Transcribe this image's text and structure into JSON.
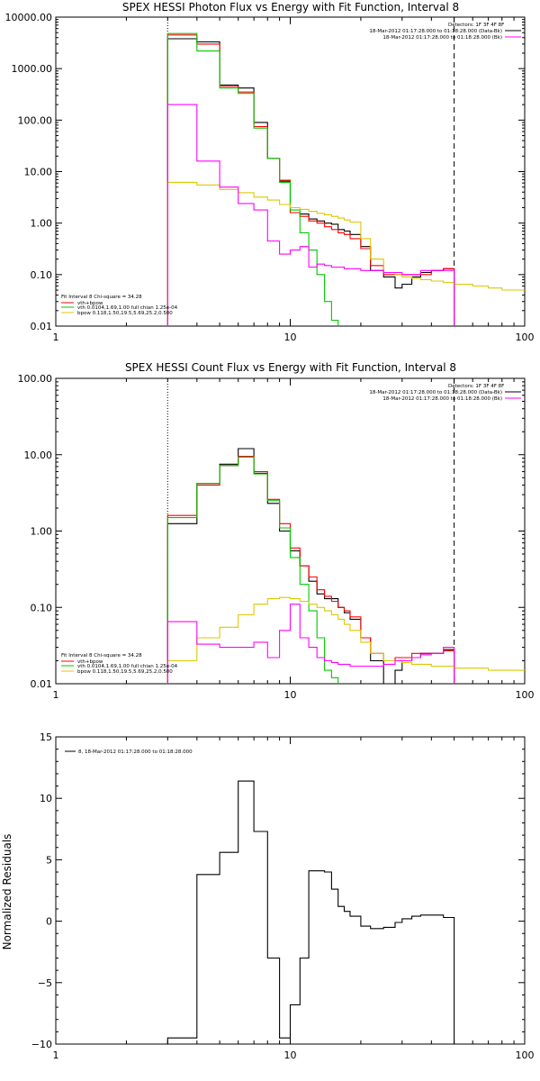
{
  "chart_data": [
    {
      "type": "line",
      "title": "SPEX HESSI Photon Flux vs Energy with Fit Function, Interval 8",
      "xlabel": "",
      "ylabel": "",
      "xscale": "log",
      "yscale": "log",
      "xlim": [
        1,
        100
      ],
      "ylim": [
        0.01,
        10000
      ],
      "xticks": [
        1,
        10,
        100
      ],
      "xtick_labels": [
        "1",
        "10",
        "100"
      ],
      "yticks": [
        0.01,
        0.1,
        1,
        10,
        100,
        1000,
        10000
      ],
      "ytick_labels": [
        "0.01",
        "0.10",
        "1.00",
        "10.00",
        "100.00",
        "1000.00",
        "10000.00"
      ],
      "vlines": [
        {
          "x": 3,
          "style": "dotted"
        },
        {
          "x": 50,
          "style": "dashed"
        }
      ],
      "legend_top": [
        "Detectors: 1F 3F 4F 8F",
        "18-Mar-2012 01:17:28.000 to 01:18:28.000 (Data-Bk)",
        "18-Mar-2012 01:17:28.000 to 01:18:28.000 (Bk)"
      ],
      "legend_bottom_title": "Fit Interval 8   Chi-square = 34.28",
      "legend_bottom": [
        "vth+bpow",
        "vth 0.0104,1.69,1.00  full chian 1.25e-04",
        "bpow 0.118,1.50,19.5,5.69,25.2,0.500"
      ],
      "series": [
        {
          "name": "Data-Bk",
          "color": "#000000",
          "edges": [
            3,
            4,
            5,
            6,
            7,
            8,
            9,
            10,
            11,
            12,
            13,
            14,
            15,
            16,
            17,
            18,
            20,
            22,
            25,
            28,
            30,
            33,
            36,
            40,
            45,
            50
          ],
          "values": [
            3800,
            3300,
            480,
            420,
            90,
            18,
            6.5,
            1.6,
            1.5,
            1.2,
            1.1,
            1.0,
            0.95,
            0.75,
            0.7,
            0.6,
            0.35,
            0.12,
            0.09,
            0.055,
            0.065,
            0.09,
            0.11,
            0.12,
            0.13
          ]
        },
        {
          "name": "vth+bpow",
          "color": "#ff0000",
          "edges": [
            3,
            4,
            5,
            6,
            7,
            8,
            9,
            10,
            11,
            12,
            13,
            14,
            15,
            16,
            17,
            18,
            20,
            22,
            25,
            28,
            30,
            33,
            36,
            40,
            45,
            50
          ],
          "values": [
            4500,
            3000,
            450,
            350,
            75,
            18,
            6.8,
            1.6,
            1.35,
            1.1,
            1.0,
            0.85,
            0.75,
            0.65,
            0.6,
            0.5,
            0.32,
            0.15,
            0.1,
            0.1,
            0.1,
            0.1,
            0.1,
            0.12,
            0.13
          ]
        },
        {
          "name": "vth",
          "color": "#00c800",
          "edges": [
            3,
            4,
            5,
            6,
            7,
            8,
            9,
            10,
            11,
            12,
            13,
            14,
            15,
            16
          ],
          "values": [
            4800,
            2200,
            420,
            330,
            70,
            18,
            6.2,
            1.8,
            0.65,
            0.3,
            0.1,
            0.03,
            0.013
          ]
        },
        {
          "name": "bpow",
          "color": "#dcc800",
          "edges": [
            3,
            4,
            5,
            6,
            7,
            8,
            9,
            10,
            11,
            12,
            13,
            14,
            15,
            16,
            17,
            18,
            20,
            22,
            25,
            28,
            30,
            33,
            36,
            40,
            45,
            50,
            60,
            70,
            80,
            100
          ],
          "values": [
            6.2,
            5.5,
            4.5,
            3.9,
            3.2,
            2.8,
            2.3,
            2.0,
            1.85,
            1.7,
            1.55,
            1.45,
            1.35,
            1.25,
            1.15,
            1.05,
            0.5,
            0.2,
            0.11,
            0.1,
            0.09,
            0.085,
            0.08,
            0.075,
            0.07,
            0.065,
            0.06,
            0.055,
            0.05
          ]
        },
        {
          "name": "Bk",
          "color": "#ff00ff",
          "edges": [
            3,
            4,
            5,
            6,
            7,
            8,
            9,
            10,
            11,
            12,
            13,
            14,
            15,
            16,
            17,
            18,
            20,
            22,
            25,
            28,
            30,
            33,
            36,
            40,
            45,
            50
          ],
          "values": [
            200,
            16,
            5,
            2.4,
            1.8,
            0.45,
            0.25,
            0.3,
            0.35,
            0.14,
            0.16,
            0.15,
            0.14,
            0.14,
            0.13,
            0.13,
            0.12,
            0.12,
            0.11,
            0.11,
            0.1,
            0.1,
            0.12,
            0.12,
            0.12
          ]
        }
      ]
    },
    {
      "type": "line",
      "title": "SPEX HESSI Count Flux vs Energy with Fit Function, Interval 8",
      "xlabel": "",
      "ylabel": "",
      "xscale": "log",
      "yscale": "log",
      "xlim": [
        1,
        100
      ],
      "ylim": [
        0.01,
        100
      ],
      "xticks": [
        1,
        10,
        100
      ],
      "xtick_labels": [
        "1",
        "10",
        "100"
      ],
      "yticks": [
        0.01,
        0.1,
        1,
        10,
        100
      ],
      "ytick_labels": [
        "0.01",
        "0.10",
        "1.00",
        "10.00",
        "100.00"
      ],
      "vlines": [
        {
          "x": 3,
          "style": "dotted"
        },
        {
          "x": 50,
          "style": "dashed"
        }
      ],
      "legend_top": [
        "Detectors: 1F 3F 4F 8F",
        "18-Mar-2012 01:17:28.000 to 01:18:28.000 (Data-Bk)",
        "18-Mar-2012 01:17:28.000 to 01:18:28.000 (Bk)"
      ],
      "legend_bottom_title": "Fit Interval 8   Chi-square = 34.28",
      "legend_bottom": [
        "vth+bpow",
        "vth 0.0104,1.69,1.00  full chian 1.25e-04",
        "bpow 0.118,1.50,19.5,5.69,25.2,0.500"
      ],
      "series": [
        {
          "name": "Data-Bk",
          "color": "#000000",
          "edges": [
            3,
            4,
            5,
            6,
            7,
            8,
            9,
            10,
            11,
            12,
            13,
            14,
            15,
            16,
            17,
            18,
            20,
            22,
            25,
            28,
            30,
            33,
            36,
            40,
            45,
            50
          ],
          "values": [
            1.25,
            4.2,
            7.5,
            12.0,
            5.7,
            2.3,
            1.0,
            0.55,
            0.35,
            0.22,
            0.15,
            0.13,
            0.13,
            0.1,
            0.085,
            0.07,
            0.04,
            0.02,
            0.01,
            0.015,
            0.02,
            0.022,
            0.025,
            0.025,
            0.028
          ]
        },
        {
          "name": "vth+bpow",
          "color": "#ff0000",
          "edges": [
            3,
            4,
            5,
            6,
            7,
            8,
            9,
            10,
            11,
            12,
            13,
            14,
            15,
            16,
            17,
            18,
            20,
            22,
            25,
            28,
            30,
            33,
            36,
            40,
            45,
            50
          ],
          "values": [
            1.6,
            4.0,
            7.2,
            9.5,
            6.0,
            2.6,
            1.25,
            0.6,
            0.35,
            0.25,
            0.17,
            0.14,
            0.12,
            0.1,
            0.09,
            0.075,
            0.04,
            0.025,
            0.02,
            0.022,
            0.022,
            0.025,
            0.025,
            0.025,
            0.027
          ]
        },
        {
          "name": "vth",
          "color": "#00c800",
          "edges": [
            3,
            4,
            5,
            6,
            7,
            8,
            9,
            10,
            11,
            12,
            13,
            14,
            15,
            16
          ],
          "values": [
            1.5,
            4.2,
            7.2,
            9.3,
            5.6,
            2.5,
            1.1,
            0.45,
            0.2,
            0.09,
            0.04,
            0.015,
            0.012
          ]
        },
        {
          "name": "bpow",
          "color": "#dcc800",
          "edges": [
            3,
            4,
            5,
            6,
            7,
            8,
            9,
            10,
            11,
            12,
            13,
            14,
            15,
            16,
            17,
            18,
            20,
            22,
            25,
            28,
            30,
            33,
            36,
            40,
            45,
            50,
            60,
            70,
            80,
            100
          ],
          "values": [
            0.02,
            0.04,
            0.055,
            0.08,
            0.11,
            0.13,
            0.135,
            0.13,
            0.12,
            0.11,
            0.1,
            0.09,
            0.08,
            0.07,
            0.06,
            0.05,
            0.035,
            0.025,
            0.02,
            0.02,
            0.019,
            0.018,
            0.018,
            0.017,
            0.017,
            0.016,
            0.016,
            0.015,
            0.015
          ]
        },
        {
          "name": "Bk",
          "color": "#ff00ff",
          "edges": [
            3,
            4,
            5,
            6,
            7,
            8,
            9,
            10,
            11,
            12,
            13,
            14,
            15,
            16,
            17,
            18,
            20,
            22,
            25,
            28,
            30,
            33,
            36,
            40,
            45,
            50
          ],
          "values": [
            0.065,
            0.033,
            0.03,
            0.03,
            0.035,
            0.022,
            0.05,
            0.11,
            0.04,
            0.03,
            0.022,
            0.02,
            0.019,
            0.018,
            0.018,
            0.017,
            0.017,
            0.017,
            0.018,
            0.02,
            0.02,
            0.022,
            0.024,
            0.025,
            0.03
          ]
        }
      ]
    },
    {
      "type": "line",
      "title": "",
      "xlabel": "",
      "ylabel": "Normalized Residuals",
      "xscale": "log",
      "yscale": "linear",
      "xlim": [
        1,
        100
      ],
      "ylim": [
        -10,
        15
      ],
      "xticks": [
        1,
        10,
        100
      ],
      "xtick_labels": [
        "1",
        "10",
        "100"
      ],
      "yticks": [
        -10,
        -5,
        0,
        5,
        10,
        15
      ],
      "ytick_labels": [
        "−10",
        "−5",
        "0",
        "5",
        "10",
        "15"
      ],
      "legend_top": [
        "8, 18-Mar-2012 01:17:28.000 to 01:18:28.000"
      ],
      "series": [
        {
          "name": "8, 18-Mar-2012 01:17:28.000 to 01:18:28.000",
          "color": "#000000",
          "edges": [
            3,
            4,
            5,
            6,
            7,
            8,
            9,
            10,
            11,
            12,
            13,
            14,
            15,
            16,
            17,
            18,
            20,
            22,
            25,
            28,
            30,
            33,
            36,
            40,
            45,
            50
          ],
          "values": [
            -9.5,
            3.8,
            5.6,
            11.4,
            7.3,
            -3.0,
            -9.5,
            -6.8,
            -3.0,
            4.1,
            4.1,
            4.0,
            2.6,
            1.2,
            0.8,
            0.4,
            -0.4,
            -0.6,
            -0.5,
            -0.1,
            0.2,
            0.4,
            0.5,
            0.5,
            0.3
          ]
        }
      ]
    }
  ]
}
